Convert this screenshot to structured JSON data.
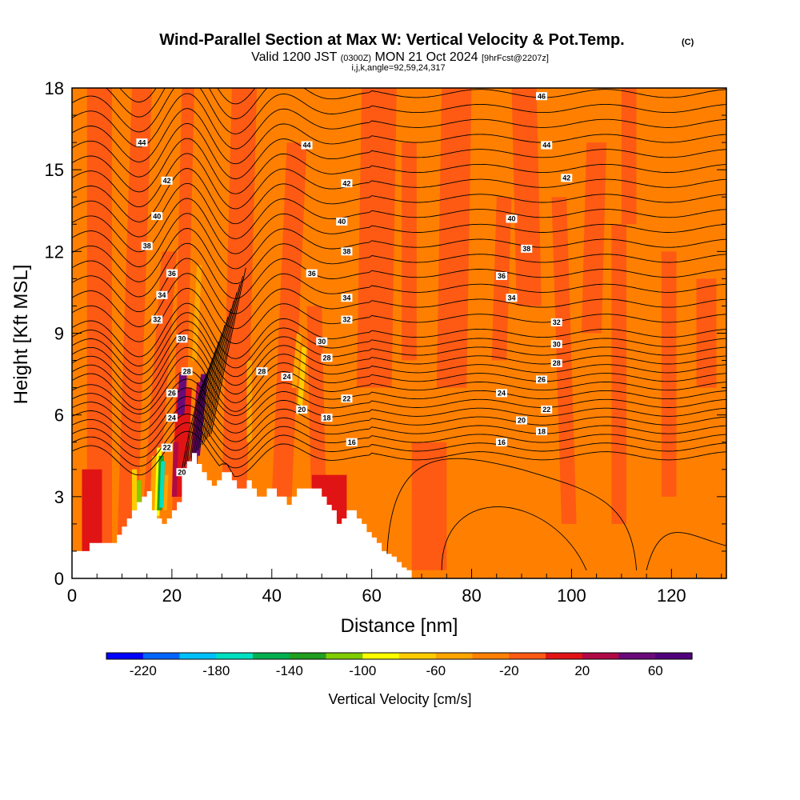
{
  "title": {
    "main": "Wind-Parallel Section at Max W: Vertical Velocity & Pot.Temp.",
    "copyright": "(C)",
    "valid_a": "Valid 1200 JST ",
    "valid_b": "(0300Z)",
    "valid_c": " MON 21 Oct 2024 ",
    "valid_d": "[9hrFcst@2207z]",
    "params": "i,j,k,angle=92,59,24,317"
  },
  "chart_data": {
    "type": "heatmap",
    "xlabel": "Distance [nm]",
    "ylabel": "Height [Kft MSL]",
    "xlim": [
      0,
      131
    ],
    "ylim": [
      0,
      18
    ],
    "x_ticks": [
      0,
      20,
      40,
      60,
      80,
      100,
      120
    ],
    "y_ticks": [
      0,
      3,
      6,
      9,
      12,
      15,
      18
    ],
    "colorbar": {
      "title": "Vertical Velocity [cm/s]",
      "min": -240,
      "max": 80,
      "step": 20,
      "tick_values": [
        -220,
        -180,
        -140,
        -100,
        -60,
        -20,
        20,
        60
      ],
      "colors": [
        "#0000ff",
        "#0066ff",
        "#00c0ff",
        "#00e0c0",
        "#00b050",
        "#20a020",
        "#80cc00",
        "#ffff00",
        "#ffcc00",
        "#ffa500",
        "#ff8000",
        "#ff5a14",
        "#e01414",
        "#b00a46",
        "#6a0a78",
        "#50007a"
      ]
    },
    "terrain": {
      "x": [
        0,
        3.5,
        3.5,
        8,
        9,
        10,
        11,
        12,
        13,
        14,
        15,
        16,
        17,
        18,
        19,
        20,
        21,
        22,
        22,
        23,
        24,
        25,
        26,
        27,
        28,
        29,
        30,
        31,
        32,
        33,
        34,
        35,
        36,
        37,
        38,
        39,
        40,
        41,
        42,
        43,
        44,
        45,
        46,
        47,
        48,
        49,
        50,
        51,
        52,
        53,
        54,
        55,
        56,
        57,
        58,
        59,
        60,
        61,
        62,
        63,
        64,
        65,
        66,
        67,
        68
      ],
      "h_kft": [
        1.0,
        1.0,
        1.3,
        1.3,
        1.6,
        1.9,
        2.2,
        2.5,
        2.8,
        3.0,
        3.2,
        2.5,
        2.2,
        2.0,
        2.2,
        2.5,
        2.8,
        3.0,
        4.0,
        4.3,
        4.6,
        4.2,
        3.9,
        3.6,
        3.4,
        3.6,
        3.9,
        3.9,
        3.6,
        3.3,
        3.3,
        3.6,
        3.3,
        3.0,
        3.0,
        3.3,
        3.3,
        3.0,
        3.0,
        2.7,
        3.0,
        3.3,
        3.3,
        3.3,
        3.3,
        3.3,
        3.0,
        2.7,
        2.5,
        2.0,
        2.2,
        2.5,
        2.5,
        2.2,
        2.0,
        1.7,
        1.5,
        1.3,
        1.0,
        0.9,
        0.8,
        0.6,
        0.4,
        0.3,
        0.3
      ]
    },
    "contour_labels": [
      {
        "value": "46",
        "x": 94,
        "y": 17.7
      },
      {
        "value": "44",
        "x": 14,
        "y": 16.0
      },
      {
        "value": "44",
        "x": 47,
        "y": 15.9
      },
      {
        "value": "44",
        "x": 95,
        "y": 15.9
      },
      {
        "value": "42",
        "x": 19,
        "y": 14.6
      },
      {
        "value": "42",
        "x": 55,
        "y": 14.5
      },
      {
        "value": "42",
        "x": 99,
        "y": 14.7
      },
      {
        "value": "40",
        "x": 17,
        "y": 13.3
      },
      {
        "value": "40",
        "x": 54,
        "y": 13.1
      },
      {
        "value": "40",
        "x": 88,
        "y": 13.2
      },
      {
        "value": "38",
        "x": 15,
        "y": 12.2
      },
      {
        "value": "38",
        "x": 55,
        "y": 12.0
      },
      {
        "value": "38",
        "x": 91,
        "y": 12.1
      },
      {
        "value": "36",
        "x": 20,
        "y": 11.2
      },
      {
        "value": "36",
        "x": 48,
        "y": 11.2
      },
      {
        "value": "36",
        "x": 86,
        "y": 11.1
      },
      {
        "value": "34",
        "x": 18,
        "y": 10.4
      },
      {
        "value": "34",
        "x": 55,
        "y": 10.3
      },
      {
        "value": "34",
        "x": 88,
        "y": 10.3
      },
      {
        "value": "32",
        "x": 17,
        "y": 9.5
      },
      {
        "value": "32",
        "x": 55,
        "y": 9.5
      },
      {
        "value": "32",
        "x": 97,
        "y": 9.4
      },
      {
        "value": "30",
        "x": 22,
        "y": 8.8
      },
      {
        "value": "30",
        "x": 50,
        "y": 8.7
      },
      {
        "value": "30",
        "x": 97,
        "y": 8.6
      },
      {
        "value": "28",
        "x": 23,
        "y": 7.6
      },
      {
        "value": "28",
        "x": 38,
        "y": 7.6
      },
      {
        "value": "28",
        "x": 51,
        "y": 8.1
      },
      {
        "value": "28",
        "x": 97,
        "y": 7.9
      },
      {
        "value": "26",
        "x": 20,
        "y": 6.8
      },
      {
        "value": "26",
        "x": 94,
        "y": 7.3
      },
      {
        "value": "24",
        "x": 20,
        "y": 5.9
      },
      {
        "value": "24",
        "x": 43,
        "y": 7.4
      },
      {
        "value": "24",
        "x": 86,
        "y": 6.8
      },
      {
        "value": "22",
        "x": 19,
        "y": 4.8
      },
      {
        "value": "22",
        "x": 55,
        "y": 6.6
      },
      {
        "value": "22",
        "x": 95,
        "y": 6.2
      },
      {
        "value": "20",
        "x": 22,
        "y": 3.9
      },
      {
        "value": "20",
        "x": 46,
        "y": 6.2
      },
      {
        "value": "20",
        "x": 90,
        "y": 5.8
      },
      {
        "value": "18",
        "x": 51,
        "y": 5.9
      },
      {
        "value": "18",
        "x": 94,
        "y": 5.4
      },
      {
        "value": "16",
        "x": 56,
        "y": 5.0
      },
      {
        "value": "16",
        "x": 86,
        "y": 5.0
      }
    ]
  }
}
